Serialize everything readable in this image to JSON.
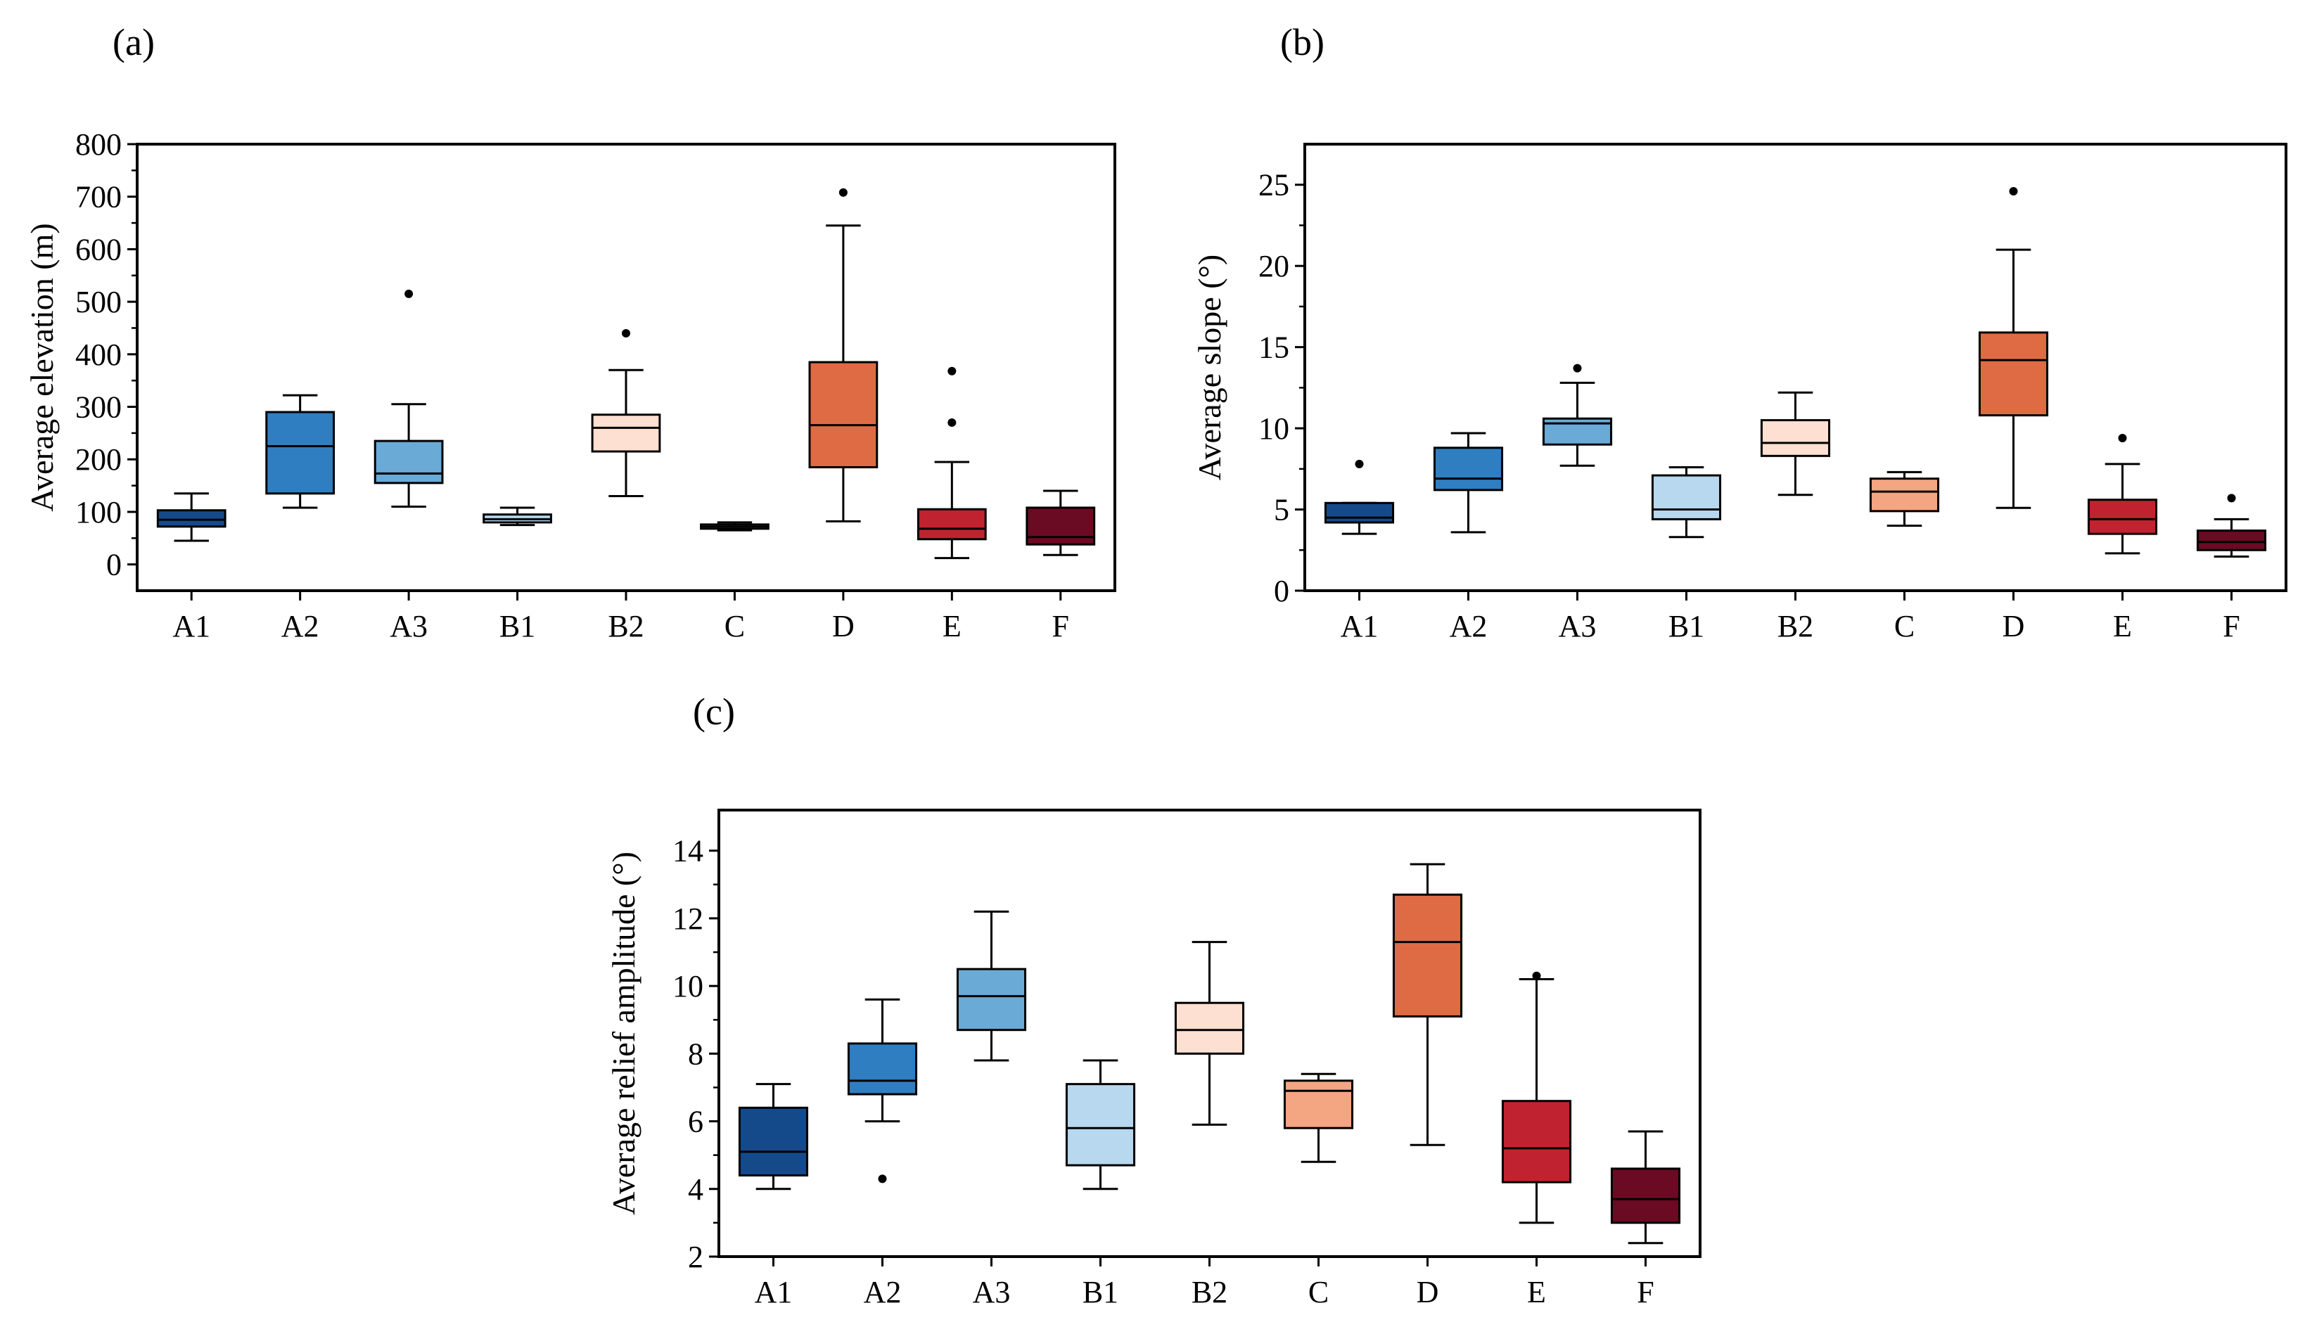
{
  "figure": {
    "panels": [
      "(a)",
      "(b)",
      "(c)"
    ]
  },
  "colors": {
    "A1": "#154a8a",
    "A2": "#2f7ec1",
    "A3": "#6aaad7",
    "B1": "#b7d8ee",
    "B2": "#fde0d1",
    "C": "#f4a582",
    "D": "#df6b45",
    "E": "#c0232f",
    "F": "#6b0a23"
  },
  "chart_data": [
    {
      "type": "box",
      "panel": "(a)",
      "ylabel": "Average elevation (m)",
      "xlabel": "",
      "categories": [
        "A1",
        "A2",
        "A3",
        "B1",
        "B2",
        "C",
        "D",
        "E",
        "F"
      ],
      "ylim": [
        -50,
        800
      ],
      "yticks": [
        0,
        100,
        200,
        300,
        400,
        500,
        600,
        700,
        800
      ],
      "boxes": [
        {
          "cat": "A1",
          "whislo": 45,
          "q1": 72,
          "med": 85,
          "q3": 103,
          "whishi": 135,
          "outliers": []
        },
        {
          "cat": "A2",
          "whislo": 108,
          "q1": 135,
          "med": 225,
          "q3": 290,
          "whishi": 322,
          "outliers": []
        },
        {
          "cat": "A3",
          "whislo": 110,
          "q1": 155,
          "med": 173,
          "q3": 235,
          "whishi": 305,
          "outliers": [
            515
          ]
        },
        {
          "cat": "B1",
          "whislo": 75,
          "q1": 80,
          "med": 86,
          "q3": 95,
          "whishi": 108,
          "outliers": []
        },
        {
          "cat": "B2",
          "whislo": 130,
          "q1": 215,
          "med": 260,
          "q3": 285,
          "whishi": 370,
          "outliers": [
            440
          ]
        },
        {
          "cat": "C",
          "whislo": 65,
          "q1": 68,
          "med": 72,
          "q3": 76,
          "whishi": 80,
          "outliers": []
        },
        {
          "cat": "D",
          "whislo": 82,
          "q1": 185,
          "med": 265,
          "q3": 385,
          "whishi": 645,
          "outliers": [
            708
          ]
        },
        {
          "cat": "E",
          "whislo": 12,
          "q1": 48,
          "med": 68,
          "q3": 105,
          "whishi": 195,
          "outliers": [
            270,
            368
          ]
        },
        {
          "cat": "F",
          "whislo": 18,
          "q1": 38,
          "med": 52,
          "q3": 108,
          "whishi": 140,
          "outliers": []
        }
      ]
    },
    {
      "type": "box",
      "panel": "(b)",
      "ylabel": "Average slope (°)",
      "xlabel": "",
      "categories": [
        "A1",
        "A2",
        "A3",
        "B1",
        "B2",
        "C",
        "D",
        "E",
        "F"
      ],
      "ylim": [
        0,
        27.5
      ],
      "yticks": [
        0,
        5,
        10,
        15,
        20,
        25
      ],
      "boxes": [
        {
          "cat": "A1",
          "whislo": 3.5,
          "q1": 4.2,
          "med": 4.5,
          "q3": 5.4,
          "whishi": 5.4,
          "outliers": [
            7.8
          ]
        },
        {
          "cat": "A2",
          "whislo": 3.6,
          "q1": 6.2,
          "med": 6.9,
          "q3": 8.8,
          "whishi": 9.7,
          "outliers": []
        },
        {
          "cat": "A3",
          "whislo": 7.7,
          "q1": 9.0,
          "med": 10.3,
          "q3": 10.6,
          "whishi": 12.8,
          "outliers": [
            13.7
          ]
        },
        {
          "cat": "B1",
          "whislo": 3.3,
          "q1": 4.4,
          "med": 5.0,
          "q3": 7.1,
          "whishi": 7.6,
          "outliers": []
        },
        {
          "cat": "B2",
          "whislo": 5.9,
          "q1": 8.3,
          "med": 9.1,
          "q3": 10.5,
          "whishi": 12.2,
          "outliers": []
        },
        {
          "cat": "C",
          "whislo": 4.0,
          "q1": 4.9,
          "med": 6.1,
          "q3": 6.9,
          "whishi": 7.3,
          "outliers": []
        },
        {
          "cat": "D",
          "whislo": 5.1,
          "q1": 10.8,
          "med": 14.2,
          "q3": 15.9,
          "whishi": 21.0,
          "outliers": [
            24.6
          ]
        },
        {
          "cat": "E",
          "whislo": 2.3,
          "q1": 3.5,
          "med": 4.4,
          "q3": 5.6,
          "whishi": 7.8,
          "outliers": [
            9.4
          ]
        },
        {
          "cat": "F",
          "whislo": 2.1,
          "q1": 2.5,
          "med": 3.0,
          "q3": 3.7,
          "whishi": 4.4,
          "outliers": [
            5.7
          ]
        }
      ]
    },
    {
      "type": "box",
      "panel": "(c)",
      "ylabel": "Average relief amplitude (°)",
      "xlabel": "",
      "categories": [
        "A1",
        "A2",
        "A3",
        "B1",
        "B2",
        "C",
        "D",
        "E",
        "F"
      ],
      "ylim": [
        2,
        15.2
      ],
      "yticks": [
        2,
        4,
        6,
        8,
        10,
        12,
        14
      ],
      "boxes": [
        {
          "cat": "A1",
          "whislo": 4.0,
          "q1": 4.4,
          "med": 5.1,
          "q3": 6.4,
          "whishi": 7.1,
          "outliers": []
        },
        {
          "cat": "A2",
          "whislo": 6.0,
          "q1": 6.8,
          "med": 7.2,
          "q3": 8.3,
          "whishi": 9.6,
          "outliers": [
            4.3
          ]
        },
        {
          "cat": "A3",
          "whislo": 7.8,
          "q1": 8.7,
          "med": 9.7,
          "q3": 10.5,
          "whishi": 12.2,
          "outliers": []
        },
        {
          "cat": "B1",
          "whislo": 4.0,
          "q1": 4.7,
          "med": 5.8,
          "q3": 7.1,
          "whishi": 7.8,
          "outliers": []
        },
        {
          "cat": "B2",
          "whislo": 5.9,
          "q1": 8.0,
          "med": 8.7,
          "q3": 9.5,
          "whishi": 11.3,
          "outliers": []
        },
        {
          "cat": "C",
          "whislo": 4.8,
          "q1": 5.8,
          "med": 6.9,
          "q3": 7.2,
          "whishi": 7.4,
          "outliers": []
        },
        {
          "cat": "D",
          "whislo": 5.3,
          "q1": 9.1,
          "med": 11.3,
          "q3": 12.7,
          "whishi": 13.6,
          "outliers": []
        },
        {
          "cat": "E",
          "whislo": 3.0,
          "q1": 4.2,
          "med": 5.2,
          "q3": 6.6,
          "whishi": 10.2,
          "outliers": [
            10.3
          ]
        },
        {
          "cat": "F",
          "whislo": 2.4,
          "q1": 3.0,
          "med": 3.7,
          "q3": 4.6,
          "whishi": 5.7,
          "outliers": []
        }
      ]
    }
  ]
}
